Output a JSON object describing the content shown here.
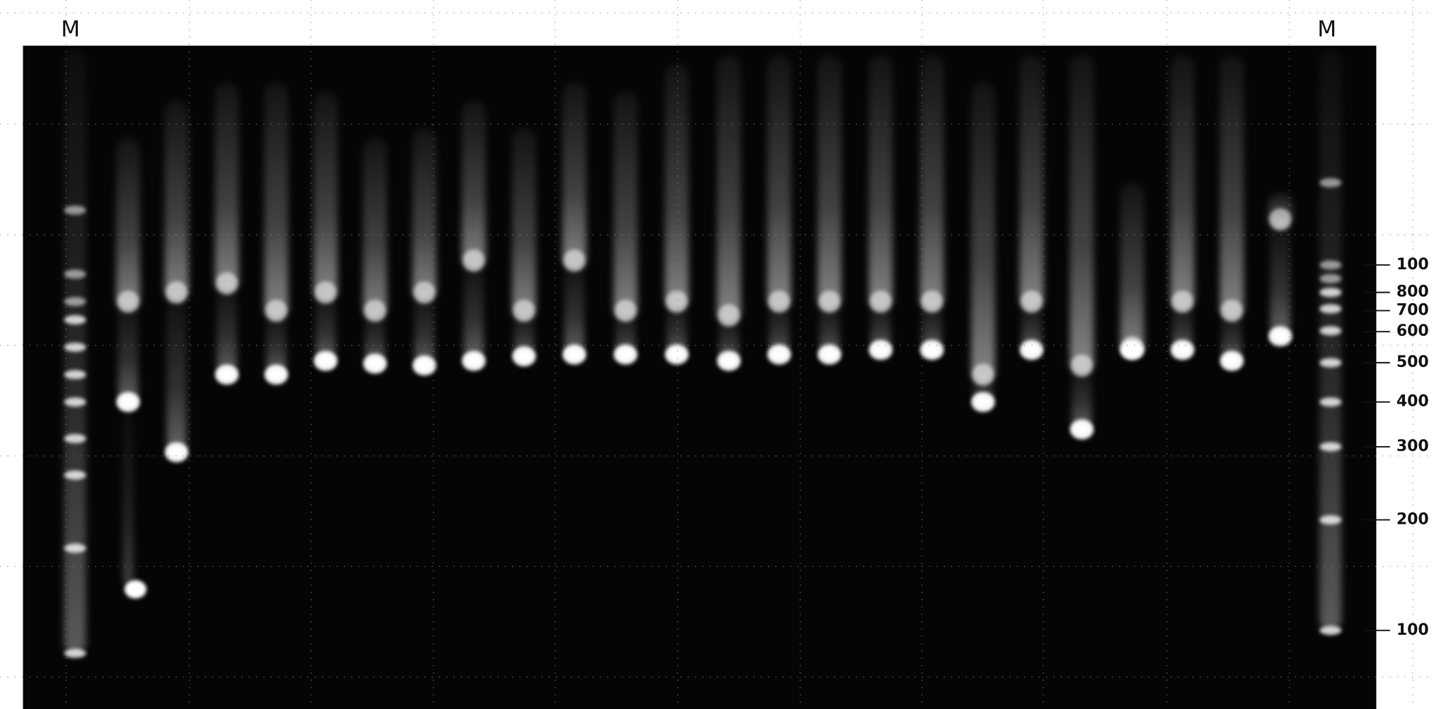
{
  "lanes": {
    "left": "M",
    "right": "M"
  },
  "size_markers": [
    "100",
    "800",
    "700",
    "600",
    "500",
    "400",
    "300",
    "200",
    "100"
  ]
}
